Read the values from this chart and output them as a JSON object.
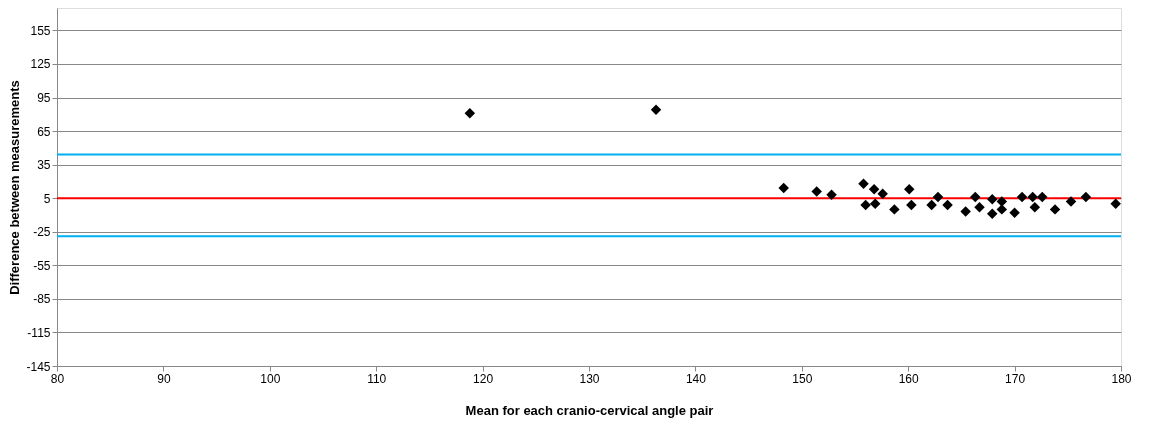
{
  "chart_data": {
    "type": "scatter",
    "xlabel": "Mean for each cranio-cervical angle pair",
    "ylabel": "Difference between measurements",
    "series": [
      {
        "color": "#000000",
        "marker": "diamond",
        "x": [
          118.8,
          136.3,
          148.3,
          151.4,
          152.8,
          155.8,
          156.8,
          156.0,
          156.9,
          157.6,
          158.7,
          160.1,
          160.3,
          162.2,
          162.8,
          163.7,
          165.4,
          166.3,
          166.7,
          167.9,
          167.9,
          168.8,
          168.8,
          170.0,
          170.7,
          171.7,
          171.9,
          172.6,
          173.8,
          175.3,
          176.7,
          179.5
        ],
        "values": [
          81,
          84,
          14,
          11,
          8,
          18,
          13,
          -1,
          0,
          9,
          -5,
          13,
          -1,
          -1,
          6,
          -1,
          -7,
          6,
          -3,
          4,
          -9,
          2,
          -5,
          -8,
          6,
          6,
          -3,
          6,
          -5,
          2,
          6,
          0
        ]
      }
    ],
    "xlim": [
      80,
      180
    ],
    "xticks": [
      80,
      90,
      100,
      110,
      120,
      130,
      140,
      150,
      160,
      170,
      180
    ],
    "ylim": [
      -145,
      175
    ],
    "yticks": [
      155,
      125,
      95,
      65,
      35,
      5,
      -25,
      -55,
      -85,
      -115,
      -145
    ],
    "grid": "y",
    "ref_lines": [
      {
        "axis": "y",
        "value": 44,
        "color": "#00b0f0"
      },
      {
        "axis": "y",
        "value": 5,
        "color": "#ff0000"
      },
      {
        "axis": "y",
        "value": -29,
        "color": "#00b0f0"
      }
    ]
  }
}
